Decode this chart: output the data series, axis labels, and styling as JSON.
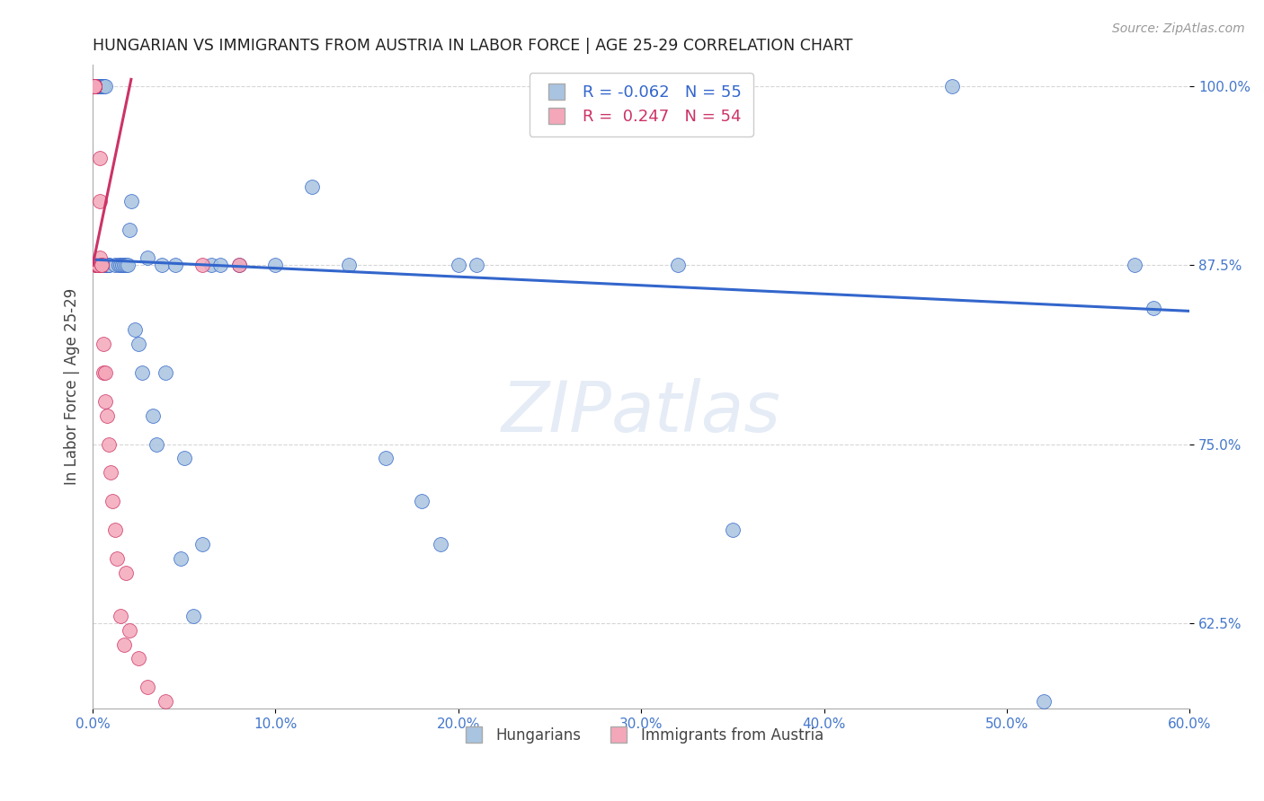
{
  "title": "HUNGARIAN VS IMMIGRANTS FROM AUSTRIA IN LABOR FORCE | AGE 25-29 CORRELATION CHART",
  "source": "Source: ZipAtlas.com",
  "ylabel": "In Labor Force | Age 25-29",
  "xlim": [
    0.0,
    0.6
  ],
  "ylim": [
    0.565,
    1.015
  ],
  "yticks": [
    0.625,
    0.75,
    0.875,
    1.0
  ],
  "ytick_labels": [
    "62.5%",
    "75.0%",
    "87.5%",
    "100.0%"
  ],
  "xticks": [
    0.0,
    0.1,
    0.2,
    0.3,
    0.4,
    0.5,
    0.6
  ],
  "xtick_labels": [
    "0.0%",
    "10.0%",
    "20.0%",
    "30.0%",
    "40.0%",
    "50.0%",
    "60.0%"
  ],
  "blue_R": -0.062,
  "blue_N": 55,
  "pink_R": 0.247,
  "pink_N": 54,
  "blue_color": "#a8c4e0",
  "pink_color": "#f4a7b9",
  "blue_line_color": "#3366cc",
  "pink_line_color": "#cc3366",
  "title_color": "#222222",
  "axis_color": "#4477cc",
  "blue_x": [
    0.002,
    0.003,
    0.003,
    0.004,
    0.005,
    0.005,
    0.005,
    0.006,
    0.006,
    0.007,
    0.007,
    0.007,
    0.008,
    0.008,
    0.009,
    0.009,
    0.012,
    0.014,
    0.015,
    0.016,
    0.017,
    0.018,
    0.019,
    0.02,
    0.021,
    0.023,
    0.025,
    0.027,
    0.03,
    0.033,
    0.035,
    0.038,
    0.04,
    0.045,
    0.048,
    0.05,
    0.055,
    0.06,
    0.065,
    0.07,
    0.08,
    0.1,
    0.12,
    0.14,
    0.16,
    0.18,
    0.19,
    0.2,
    0.21,
    0.32,
    0.35,
    0.47,
    0.52,
    0.57,
    0.58
  ],
  "blue_y": [
    1.0,
    1.0,
    1.0,
    1.0,
    1.0,
    1.0,
    1.0,
    1.0,
    1.0,
    1.0,
    0.875,
    0.875,
    0.875,
    0.875,
    0.875,
    0.875,
    0.875,
    0.875,
    0.875,
    0.875,
    0.875,
    0.875,
    0.875,
    0.9,
    0.92,
    0.83,
    0.82,
    0.8,
    0.88,
    0.77,
    0.75,
    0.875,
    0.8,
    0.875,
    0.67,
    0.74,
    0.63,
    0.68,
    0.875,
    0.875,
    0.875,
    0.875,
    0.93,
    0.875,
    0.74,
    0.71,
    0.68,
    0.875,
    0.875,
    0.875,
    0.69,
    1.0,
    0.57,
    0.875,
    0.845
  ],
  "pink_x": [
    0.001,
    0.001,
    0.001,
    0.001,
    0.001,
    0.001,
    0.001,
    0.001,
    0.001,
    0.001,
    0.001,
    0.001,
    0.001,
    0.001,
    0.001,
    0.001,
    0.001,
    0.002,
    0.002,
    0.002,
    0.002,
    0.002,
    0.002,
    0.002,
    0.002,
    0.003,
    0.003,
    0.003,
    0.003,
    0.003,
    0.004,
    0.004,
    0.004,
    0.005,
    0.005,
    0.006,
    0.006,
    0.007,
    0.007,
    0.008,
    0.009,
    0.01,
    0.011,
    0.012,
    0.013,
    0.015,
    0.017,
    0.018,
    0.02,
    0.025,
    0.03,
    0.04,
    0.06,
    0.08
  ],
  "pink_y": [
    1.0,
    1.0,
    1.0,
    1.0,
    1.0,
    1.0,
    1.0,
    1.0,
    1.0,
    1.0,
    1.0,
    1.0,
    1.0,
    1.0,
    1.0,
    1.0,
    1.0,
    0.875,
    0.875,
    0.875,
    0.875,
    0.875,
    0.875,
    0.875,
    0.875,
    0.875,
    0.875,
    0.875,
    0.875,
    0.875,
    0.95,
    0.92,
    0.88,
    0.875,
    0.875,
    0.82,
    0.8,
    0.8,
    0.78,
    0.77,
    0.75,
    0.73,
    0.71,
    0.69,
    0.67,
    0.63,
    0.61,
    0.66,
    0.62,
    0.6,
    0.58,
    0.57,
    0.875,
    0.875
  ],
  "blue_trendline_x": [
    0.0,
    0.6
  ],
  "blue_trendline_y": [
    0.879,
    0.843
  ],
  "pink_trendline_x": [
    0.0,
    0.021
  ],
  "pink_trendline_y": [
    0.875,
    1.005
  ]
}
